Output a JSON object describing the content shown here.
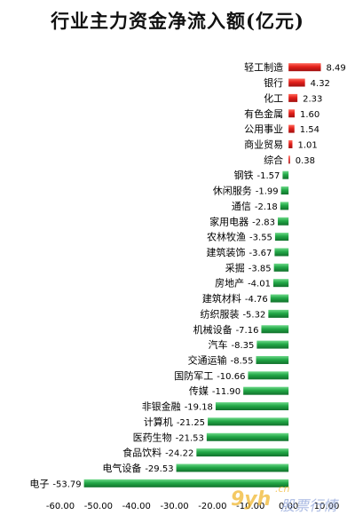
{
  "chart_data": {
    "type": "bar",
    "orientation": "horizontal",
    "title": "行业主力资金净流入额(亿元)",
    "categories": [
      "轻工制造",
      "银行",
      "化工",
      "有色金属",
      "公用事业",
      "商业贸易",
      "综合",
      "钢铁",
      "休闲服务",
      "通信",
      "家用电器",
      "农林牧渔",
      "建筑装饰",
      "采掘",
      "房地产",
      "建筑材料",
      "纺织服装",
      "机械设备",
      "汽车",
      "交通运输",
      "国防军工",
      "传媒",
      "非银金融",
      "计算机",
      "医药生物",
      "食品饮料",
      "电气设备",
      "电子"
    ],
    "values": [
      8.49,
      4.32,
      2.33,
      1.6,
      1.54,
      1.01,
      0.38,
      -1.57,
      -1.99,
      -2.18,
      -2.83,
      -3.55,
      -3.67,
      -3.85,
      -4.01,
      -4.76,
      -5.32,
      -7.16,
      -8.35,
      -8.55,
      -10.66,
      -11.9,
      -19.18,
      -21.25,
      -21.53,
      -24.22,
      -29.53,
      -53.79
    ],
    "value_labels": [
      "8.49",
      "4.32",
      "2.33",
      "1.60",
      "1.54",
      "1.01",
      "0.38",
      "-1.57",
      "-1.99",
      "-2.18",
      "-2.83",
      "-3.55",
      "-3.67",
      "-3.85",
      "-4.01",
      "-4.76",
      "-5.32",
      "-7.16",
      "-8.35",
      "-8.55",
      "-10.66",
      "-11.90",
      "-19.18",
      "-21.25",
      "-21.53",
      "-24.22",
      "-29.53",
      "-53.79"
    ],
    "xlim": [
      -60,
      10
    ],
    "xticks": [
      -60,
      -50,
      -40,
      -30,
      -20,
      -10,
      0,
      10
    ],
    "xtick_labels": [
      "-60.00",
      "-50.00",
      "-40.00",
      "-30.00",
      "-20.00",
      "-10.00",
      "0.00",
      "10.00"
    ],
    "grid": false,
    "legend": "none",
    "colors": {
      "positive": "#e3201b",
      "negative": "#22a847"
    }
  },
  "watermark": {
    "brand": "9yh",
    "domain": ".cn",
    "text": "股票行情"
  }
}
